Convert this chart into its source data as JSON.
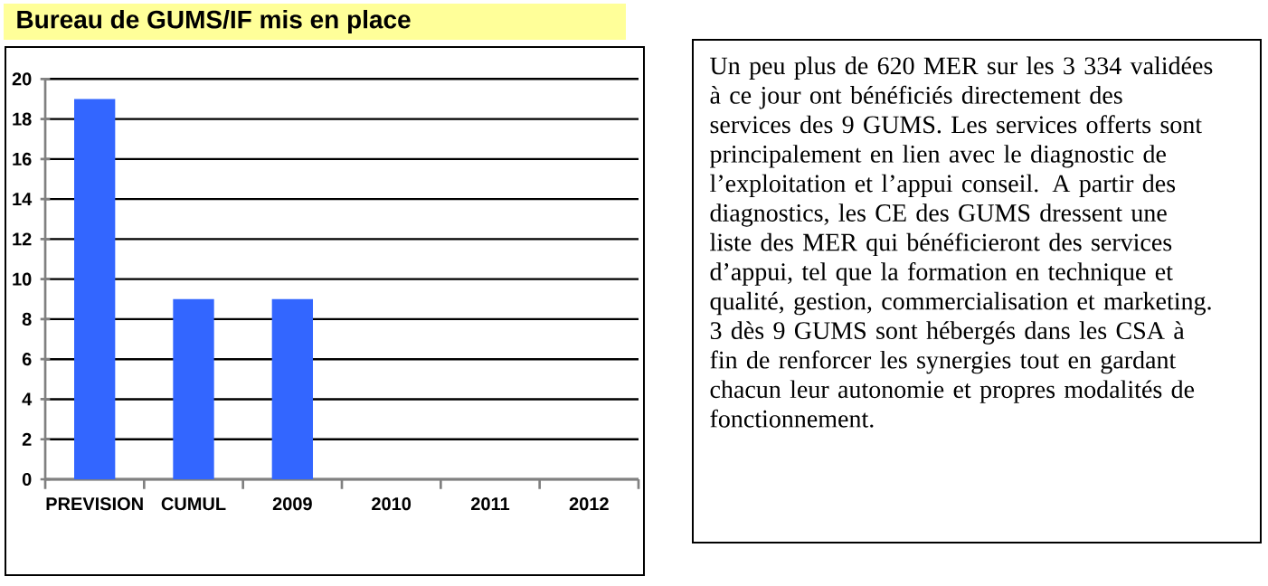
{
  "chart_data": [
    {
      "type": "bar",
      "title": "Bureau de GUMS/IF mis en place",
      "categories": [
        "PREVISION",
        "CUMUL",
        "2009",
        "2010",
        "2011",
        "2012"
      ],
      "values": [
        19,
        9,
        9,
        null,
        null,
        null
      ],
      "color": "#3366ff",
      "ylim": [
        0,
        20
      ],
      "yticks": [
        0,
        2,
        4,
        6,
        8,
        10,
        12,
        14,
        16,
        18,
        20
      ],
      "grid": "y"
    },
    {
      "type": "other",
      "annotations": [
        "Un peu plus de 620 MER sur les 3 334 validées à ce jour ont bénéficiés directement des services des 9 GUMS.  Les services offerts sont principalement en lien avec le diagnostic de l’exploitation et l’appui conseil.  A partir des diagnostics, les CE des GUMS dressent une liste des MER qui bénéficieront des services d’appui, tel que la formation en technique et qualité, gestion, commercialisation et marketing.",
        "3 dès 9 GUMS sont hébergés dans les CSA à fin de renforcer les synergies tout en gardant chacun leur autonomie et propres modalités de fonctionnement."
      ]
    }
  ]
}
